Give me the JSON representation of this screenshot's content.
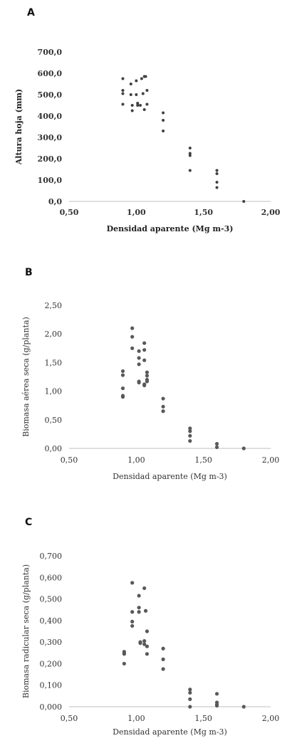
{
  "chart_data": [
    {
      "type": "scatter",
      "panel_label": "A",
      "xlabel": "Densidad aparente (Mg m-3)",
      "ylabel": "Altura hoja (mm)",
      "xlim": [
        0.5,
        2.0
      ],
      "ylim": [
        0,
        700
      ],
      "x_ticks": [
        "0,50",
        "1,00",
        "1,50",
        "2,00"
      ],
      "y_ticks": [
        "0,0",
        "100,0",
        "200,0",
        "300,0",
        "400,0",
        "500,0",
        "600,0",
        "700,0"
      ],
      "grid": false,
      "marker_color": "#404040",
      "series": [
        {
          "x": [
            0.9,
            0.9,
            0.9,
            0.9,
            0.96,
            0.96,
            0.97,
            0.97,
            1.0,
            1.0,
            1.01,
            1.01,
            1.03,
            1.04,
            1.05,
            1.06,
            1.06,
            1.07,
            1.08,
            1.08,
            1.2,
            1.2,
            1.2,
            1.4,
            1.4,
            1.4,
            1.4,
            1.6,
            1.6,
            1.6,
            1.6,
            1.8
          ],
          "y": [
            575,
            520,
            505,
            455,
            550,
            500,
            450,
            425,
            565,
            500,
            460,
            450,
            450,
            575,
            505,
            430,
            585,
            585,
            520,
            455,
            415,
            380,
            330,
            250,
            225,
            215,
            145,
            145,
            130,
            90,
            65,
            0
          ]
        }
      ]
    },
    {
      "type": "scatter",
      "panel_label": "B",
      "xlabel": "Densidad aparente (Mg m-3)",
      "ylabel": "Biomasa aérea seca (g/planta)",
      "xlim": [
        0.5,
        2.0
      ],
      "ylim": [
        0,
        2.5
      ],
      "x_ticks": [
        "0,50",
        "1,00",
        "1,50",
        "2,00"
      ],
      "y_ticks": [
        "0,00",
        "0,50",
        "1,00",
        "1,50",
        "2,00",
        "2,50"
      ],
      "grid": false,
      "marker_color": "#595959",
      "series": [
        {
          "x": [
            0.9,
            0.9,
            0.9,
            0.9,
            0.9,
            0.97,
            0.97,
            0.97,
            1.02,
            1.02,
            1.02,
            1.02,
            1.02,
            1.06,
            1.06,
            1.06,
            1.06,
            1.06,
            1.08,
            1.08,
            1.08,
            1.08,
            1.2,
            1.2,
            1.2,
            1.4,
            1.4,
            1.4,
            1.4,
            1.6,
            1.6,
            1.8
          ],
          "y": [
            1.35,
            1.28,
            1.05,
            0.92,
            0.9,
            2.1,
            1.95,
            1.75,
            1.7,
            1.58,
            1.47,
            1.17,
            1.15,
            1.84,
            1.72,
            1.54,
            1.12,
            1.1,
            1.33,
            1.27,
            1.2,
            1.17,
            0.87,
            0.73,
            0.65,
            0.35,
            0.3,
            0.22,
            0.13,
            0.08,
            0.02,
            0.0
          ]
        }
      ]
    },
    {
      "type": "scatter",
      "panel_label": "C",
      "xlabel": "Densidad aparente (Mg m-3)",
      "ylabel": "Biomasa radicular  seca (g/planta)",
      "xlim": [
        0.5,
        2.0
      ],
      "ylim": [
        0,
        0.7
      ],
      "x_ticks": [
        "0,50",
        "1,00",
        "1,50",
        "2,00"
      ],
      "y_ticks": [
        "0,000",
        "0,100",
        "0,200",
        "0,300",
        "0,400",
        "0,500",
        "0,600",
        "0,700"
      ],
      "grid": false,
      "marker_color": "#595959",
      "series": [
        {
          "x": [
            0.91,
            0.91,
            0.91,
            0.91,
            0.97,
            0.97,
            0.97,
            0.97,
            1.02,
            1.02,
            1.02,
            1.03,
            1.03,
            1.06,
            1.06,
            1.06,
            1.07,
            1.08,
            1.08,
            1.08,
            1.2,
            1.2,
            1.2,
            1.4,
            1.4,
            1.4,
            1.4,
            1.6,
            1.6,
            1.6,
            1.6,
            1.8
          ],
          "y": [
            0.255,
            0.25,
            0.245,
            0.2,
            0.575,
            0.44,
            0.395,
            0.375,
            0.515,
            0.46,
            0.44,
            0.3,
            0.295,
            0.55,
            0.305,
            0.29,
            0.445,
            0.35,
            0.28,
            0.245,
            0.27,
            0.22,
            0.175,
            0.08,
            0.065,
            0.035,
            0.0,
            0.06,
            0.02,
            0.01,
            0.005,
            0.0
          ]
        }
      ]
    }
  ]
}
